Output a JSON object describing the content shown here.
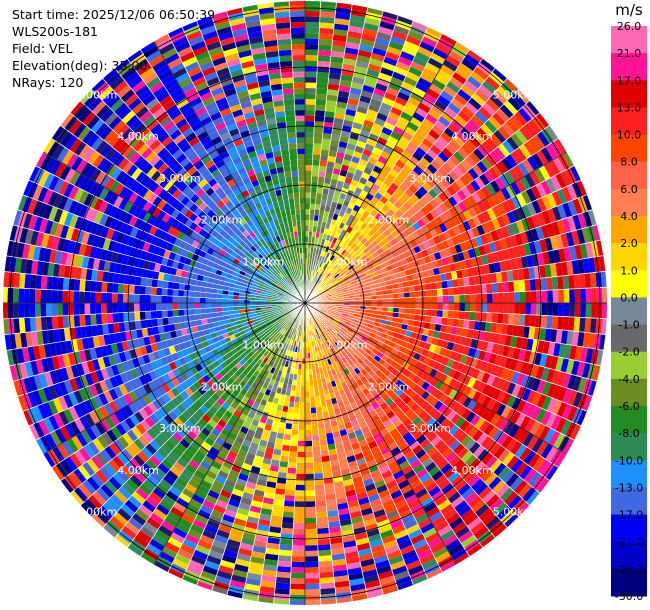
{
  "header": {
    "start_time": "Start time: 2025/12/06 06:50:39",
    "instrument": "WLS200s-181",
    "field": "Field: VEL",
    "elevation": "Elevation(deg): 35.00",
    "nrays": "NRays: 120"
  },
  "chart_data": {
    "type": "heatmap",
    "projection": "polar-ppi",
    "n_rays": 120,
    "range_rings_km": [
      1,
      2,
      3,
      4,
      5
    ],
    "range_ring_labels": [
      "1.00km",
      "2.00km",
      "3.00km",
      "4.00km",
      "5.00km"
    ],
    "colorbar": {
      "unit": "m/s",
      "tick_labels": [
        "26.0",
        "21.0",
        "17.0",
        "13.0",
        "10.0",
        "8.0",
        "6.0",
        "4.0",
        "2.0",
        "1.0",
        "0.0",
        "-1.0",
        "-2.0",
        "-4.0",
        "-6.0",
        "-8.0",
        "-10.0",
        "-13.0",
        "-17.0",
        "-21.0",
        "-26.0",
        "-30.0"
      ],
      "bins": [
        {
          "low": 26,
          "color": "#ff69b4"
        },
        {
          "low": 21,
          "color": "#ff1493"
        },
        {
          "low": 17,
          "color": "#e00000"
        },
        {
          "low": 13,
          "color": "#ff2020"
        },
        {
          "low": 10,
          "color": "#ff4500"
        },
        {
          "low": 8,
          "color": "#ff6347"
        },
        {
          "low": 6,
          "color": "#ff7f50"
        },
        {
          "low": 4,
          "color": "#ffa500"
        },
        {
          "low": 2,
          "color": "#ffd700"
        },
        {
          "low": 1,
          "color": "#ffff00"
        },
        {
          "low": 0,
          "color": "#778899"
        },
        {
          "low": -1,
          "color": "#696969"
        },
        {
          "low": -2,
          "color": "#9acd32"
        },
        {
          "low": -4,
          "color": "#6b8e23"
        },
        {
          "low": -6,
          "color": "#228b22"
        },
        {
          "low": -8,
          "color": "#2e8b57"
        },
        {
          "low": -10,
          "color": "#1e90ff"
        },
        {
          "low": -13,
          "color": "#4169e1"
        },
        {
          "low": -17,
          "color": "#0000ff"
        },
        {
          "low": -21,
          "color": "#0000cd"
        },
        {
          "low": -26,
          "color": "#000080"
        },
        {
          "low": -30,
          "color": "#191970"
        }
      ]
    }
  }
}
